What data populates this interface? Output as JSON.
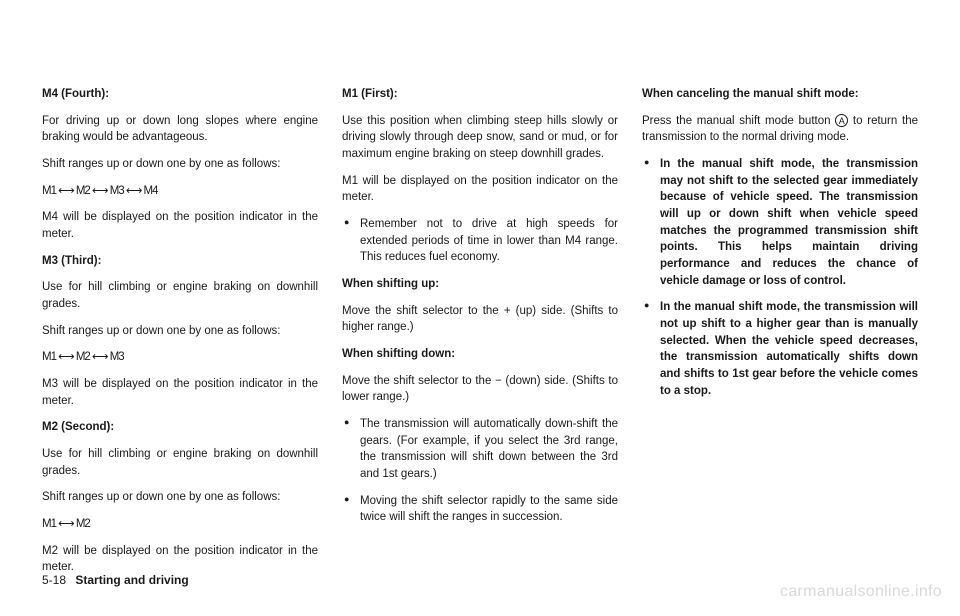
{
  "col1": {
    "h1": "M4 (Fourth):",
    "p1": "For driving up or down long slopes where engine braking would be advantageous.",
    "p2": "Shift ranges up or down one by one as follows:",
    "seq1": "M1 ⟷ M2 ⟷ M3 ⟷ M4",
    "p3": "M4 will be displayed on the position indicator in the meter.",
    "h2": "M3 (Third):",
    "p4": "Use for hill climbing or engine braking on downhill grades.",
    "p5": "Shift ranges up or down one by one as follows:",
    "seq2": "M1 ⟷ M2 ⟷ M3",
    "p6": "M3 will be displayed on the position indicator in the meter.",
    "h3": "M2 (Second):",
    "p7": "Use for hill climbing or engine braking on downhill grades.",
    "p8": "Shift ranges up or down one by one as follows:",
    "seq3": "M1 ⟷ M2",
    "p9": "M2 will be displayed on the position indicator in the meter."
  },
  "col2": {
    "h1": "M1 (First):",
    "p1": "Use this position when climbing steep hills slowly or driving slowly through deep snow, sand or mud, or for maximum engine braking on steep downhill grades.",
    "p2": "M1 will be displayed on the position indicator on the meter.",
    "li1": "Remember not to drive at high speeds for extended periods of time in lower than M4 range. This reduces fuel economy.",
    "h2": "When shifting up:",
    "p3": "Move the shift selector to the + (up) side. (Shifts to higher range.)",
    "h3": "When shifting down:",
    "p4": "Move the shift selector to the − (down) side. (Shifts to lower range.)",
    "li2": "The transmission will automatically down-shift the gears. (For example, if you select the 3rd range, the transmission will shift down between the 3rd and 1st gears.)",
    "li3": "Moving the shift selector rapidly to the same side twice will shift the ranges in succession."
  },
  "col3": {
    "h1": "When canceling the manual shift mode:",
    "p1a": "Press the manual shift mode button ",
    "p1b": " to return the transmission to the normal driving mode.",
    "circ": "A",
    "li1": "In the manual shift mode, the transmission may not shift to the selected gear immediately because of vehicle speed. The transmission will up or down shift when vehicle speed matches the programmed transmission shift points. This helps maintain driving performance and reduces the chance of vehicle damage or loss of control.",
    "li2": "In the manual shift mode, the transmission will not up shift to a higher gear than is manually selected. When the vehicle speed decreases, the transmission automatically shifts down and shifts to 1st gear before the vehicle comes to a stop."
  },
  "footer": {
    "pgnum": "5-18",
    "section": "Starting and driving"
  },
  "watermark": "carmanualsonline.info"
}
